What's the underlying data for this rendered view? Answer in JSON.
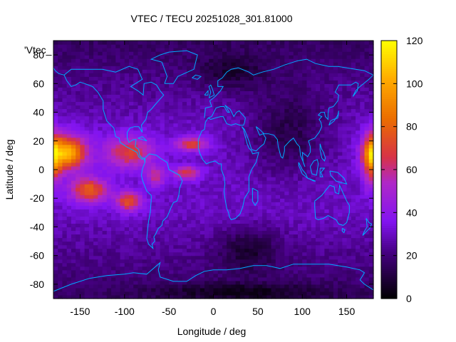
{
  "chart_data": {
    "type": "heatmap",
    "title": "VTEC / TECU 20251028_301.81000",
    "xlabel": "Longitude / deg",
    "ylabel": "Latitude / deg",
    "key_label": "'Vtec_",
    "xlim": [
      -180,
      180
    ],
    "ylim": [
      -90,
      90
    ],
    "x_ticks": [
      -150,
      -100,
      -50,
      0,
      50,
      100,
      150
    ],
    "y_ticks": [
      -80,
      -60,
      -40,
      -20,
      0,
      20,
      40,
      60,
      80
    ],
    "colorbar": {
      "range": [
        0,
        120
      ],
      "ticks": [
        0,
        20,
        40,
        60,
        80,
        100,
        120
      ]
    },
    "grid_step_deg": {
      "lon": 5,
      "lat": 2.5
    },
    "enhancements": [
      {
        "lon": -165,
        "lat": 12,
        "amp": 72,
        "slon": 22,
        "slat": 12
      },
      {
        "lon": -140,
        "lat": -14,
        "amp": 48,
        "slon": 22,
        "slat": 9
      },
      {
        "lon": -95,
        "lat": -22,
        "amp": 45,
        "slon": 15,
        "slat": 7
      },
      {
        "lon": -95,
        "lat": 12,
        "amp": 40,
        "slon": 28,
        "slat": 11
      },
      {
        "lon": -25,
        "lat": 18,
        "amp": 42,
        "slon": 18,
        "slat": 5
      },
      {
        "lon": -30,
        "lat": -2,
        "amp": 38,
        "slon": 15,
        "slat": 5
      },
      {
        "lon": -65,
        "lat": -5,
        "amp": 30,
        "slon": 10,
        "slat": 7
      },
      {
        "lon": 178,
        "lat": 8,
        "amp": 48,
        "slon": 10,
        "slat": 18
      }
    ],
    "coastline_color": "#00aaff"
  }
}
